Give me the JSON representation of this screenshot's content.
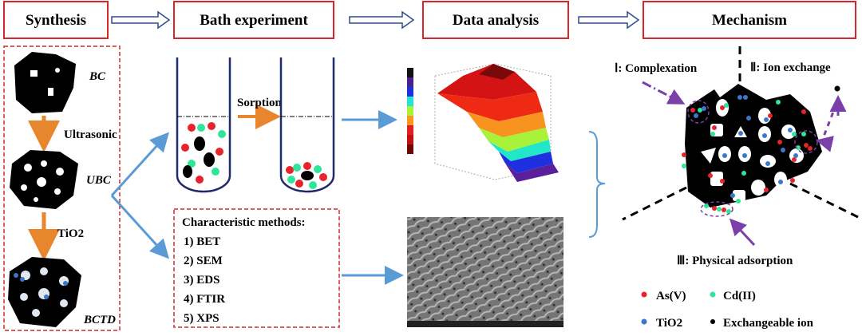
{
  "stages": [
    {
      "label": "Synthesis"
    },
    {
      "label": "Bath experiment"
    },
    {
      "label": "Data analysis"
    },
    {
      "label": "Mechanism"
    }
  ],
  "synthesis": {
    "materials": [
      "BC",
      "UBC",
      "BCTD"
    ],
    "steps": [
      "Ultrasonic",
      "TiO2"
    ]
  },
  "bath": {
    "step_label": "Sorption"
  },
  "characterization": {
    "title": "Characteristic methods:",
    "methods": [
      "1) BET",
      "2) SEM",
      "3) EDS",
      "4) FTIR",
      "5) XPS"
    ]
  },
  "mechanism": {
    "labels": [
      "Ⅰ: Complexation",
      "Ⅱ: Ion exchange",
      "Ⅲ: Physical adsorption"
    ],
    "legend": [
      {
        "label": "As(V)",
        "color": "#e8232b"
      },
      {
        "label": "Cd(II)",
        "color": "#2ee69a"
      },
      {
        "label": "TiO2",
        "color": "#3a78c9"
      },
      {
        "label": "Exchangeable ion",
        "color": "#000000"
      }
    ]
  },
  "colors": {
    "header_border": "#d9262b",
    "flow_arrow": "#5b9bd5",
    "step_arrow": "#e8862e",
    "mechanism_arrow": "#7a3fa8"
  }
}
